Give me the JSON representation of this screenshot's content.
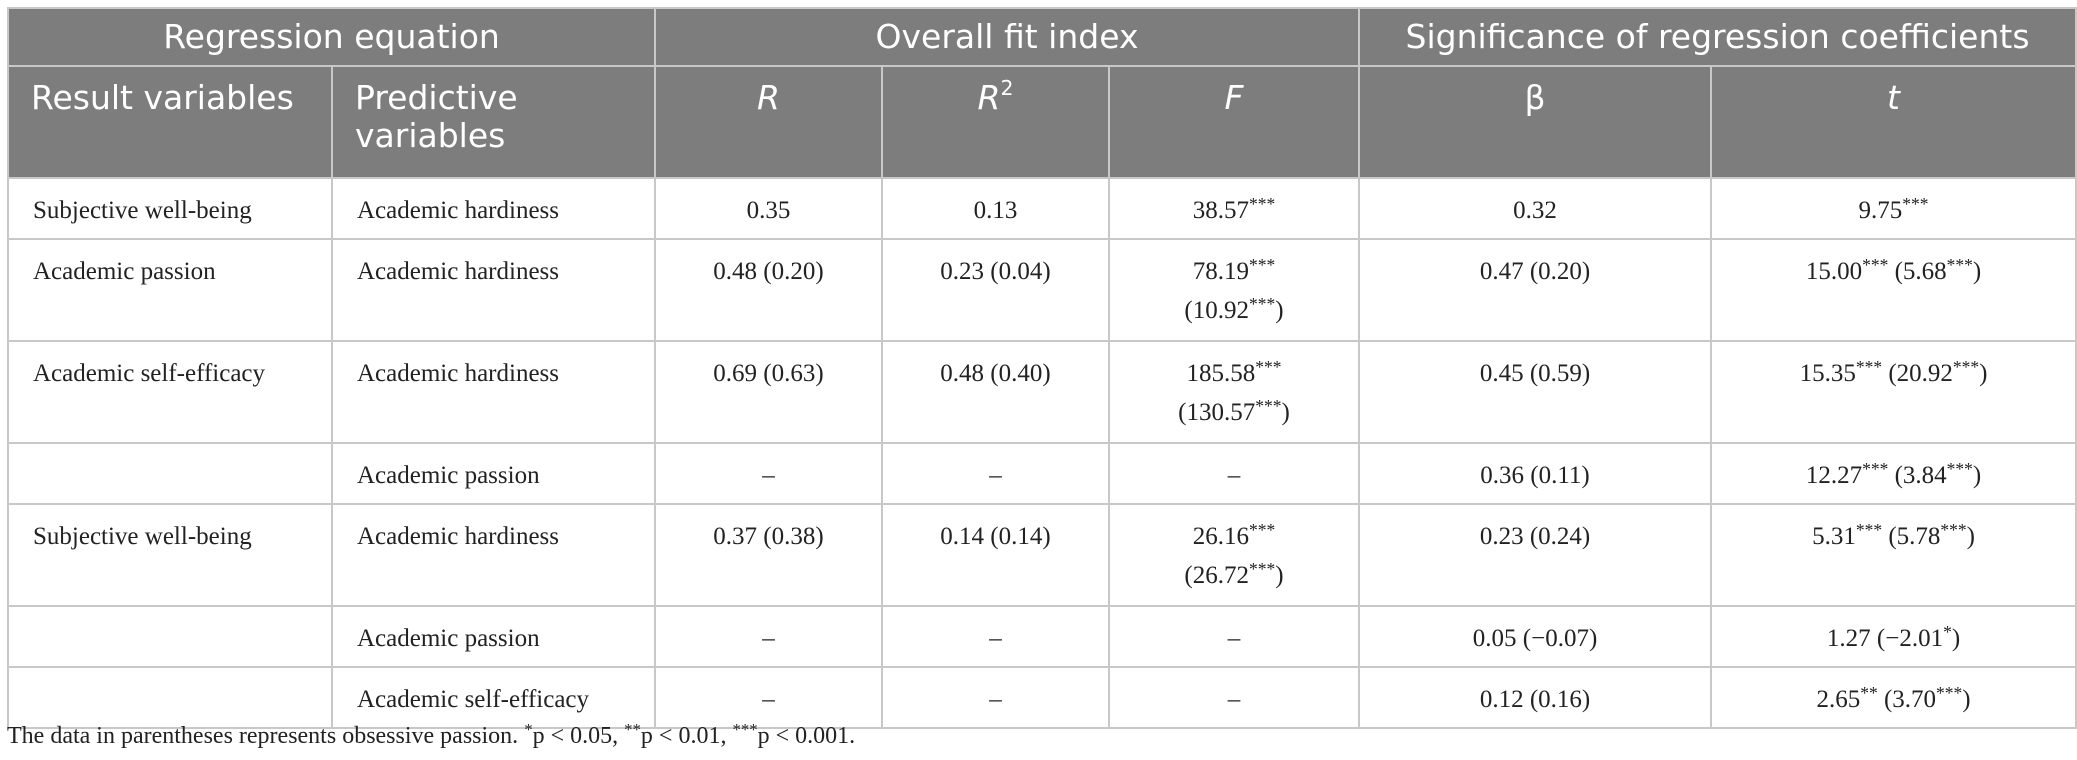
{
  "header": {
    "groups": {
      "regression_equation": "Regression equation",
      "overall_fit_index": "Overall fit index",
      "significance": "Significance of regression coefficients"
    },
    "columns": {
      "result_variables": "Result variables",
      "predictive_variables": "Predictive variables",
      "r": "R",
      "r2_base": "R",
      "r2_sup": "2",
      "f": "F",
      "beta": "β",
      "t": "t"
    }
  },
  "rows": [
    {
      "result": "Subjective well-being",
      "predictor": "Academic hardiness",
      "r": "0.35",
      "r2": "0.13",
      "f_line1": "38.57***",
      "f_line2": "",
      "beta": "0.32",
      "t": "9.75***"
    },
    {
      "result": "Academic passion",
      "predictor": "Academic hardiness",
      "r": "0.48 (0.20)",
      "r2": "0.23 (0.04)",
      "f_line1": "78.19***",
      "f_line2": "(10.92***)",
      "beta": "0.47 (0.20)",
      "t": "15.00*** (5.68***)"
    },
    {
      "result": "Academic self-efficacy",
      "predictor": "Academic hardiness",
      "r": "0.69 (0.63)",
      "r2": "0.48 (0.40)",
      "f_line1": "185.58***",
      "f_line2": "(130.57***)",
      "beta": "0.45 (0.59)",
      "t": "15.35*** (20.92***)"
    },
    {
      "result": "",
      "predictor": "Academic passion",
      "r": "–",
      "r2": "–",
      "f_line1": "–",
      "f_line2": "",
      "beta": "0.36 (0.11)",
      "t": "12.27*** (3.84***)"
    },
    {
      "result": "Subjective well-being",
      "predictor": "Academic hardiness",
      "r": "0.37 (0.38)",
      "r2": "0.14 (0.14)",
      "f_line1": "26.16***",
      "f_line2": "(26.72***)",
      "beta": "0.23 (0.24)",
      "t": "5.31*** (5.78***)"
    },
    {
      "result": "",
      "predictor": "Academic passion",
      "r": "–",
      "r2": "–",
      "f_line1": "–",
      "f_line2": "",
      "beta": "0.05 (−0.07)",
      "t": "1.27 (−2.01*)"
    },
    {
      "result": "",
      "predictor": "Academic self-efficacy",
      "r": "–",
      "r2": "–",
      "f_line1": "–",
      "f_line2": "",
      "beta": "0.12 (0.16)",
      "t": "2.65** (3.70***)"
    }
  ],
  "footnote": "The data in parentheses represents obsessive passion. *p < 0.05, **p < 0.01, ***p < 0.001."
}
